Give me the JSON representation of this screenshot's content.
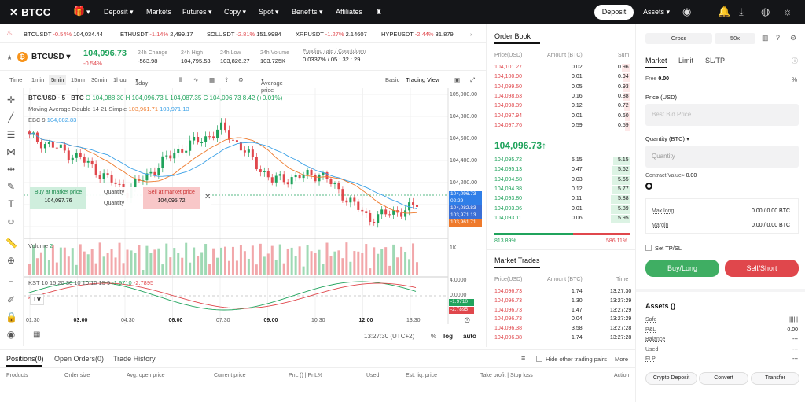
{
  "nav": {
    "logo": "BTCC",
    "items": [
      "Deposit",
      "Markets",
      "Futures",
      "Copy",
      "Spot",
      "Benefits",
      "Affiliates"
    ],
    "deposit_button": "Deposit",
    "assets": "Assets"
  },
  "ticker": [
    {
      "sym": "BTCUSDT",
      "chg": "-0.54%",
      "price": "104,034.44"
    },
    {
      "sym": "ETHUSDT",
      "chg": "-1.14%",
      "price": "2,499.17"
    },
    {
      "sym": "SOLUSDT",
      "chg": "-2.81%",
      "price": "151.9984"
    },
    {
      "sym": "XRPUSDT",
      "chg": "-1.27%",
      "price": "2.14607"
    },
    {
      "sym": "HYPEUSDT",
      "chg": "-2.44%",
      "price": "31.879"
    }
  ],
  "symbol": {
    "name": "BTCUSD",
    "price": "104,096.73",
    "change": "-0.54%",
    "stats": [
      {
        "label": "24h Change",
        "value": "-563.98"
      },
      {
        "label": "24h High",
        "value": "104,795.53"
      },
      {
        "label": "24h Low",
        "value": "103,826.27"
      },
      {
        "label": "24h Volume",
        "value": "103.725K"
      },
      {
        "label": "Funding rate / Countdown",
        "value": "0.0337% / 05 : 32 : 29"
      }
    ]
  },
  "toolbar": {
    "items": [
      "Time",
      "1min",
      "5min",
      "15min",
      "30min",
      "1hour",
      "1day"
    ],
    "active": "5min",
    "avg": "Average price",
    "basic": "Basic",
    "tv": "Trading View"
  },
  "chart": {
    "header": "BTC/USD · 5 · BTC",
    "ohlc": "O 104,088.30  H 104,096.73  L 104,087.35  C 104,096.73  8.42 (+0.01%)",
    "ma_label": "Moving Average Double 14 21 Simple",
    "ma1": "103,961.71",
    "ma2": "103,971.13",
    "ebc_label": "EBC 9",
    "ebc_val": "104,082.83",
    "buy_label": "Buy at market price",
    "buy_val": "104,097.76",
    "qty": "Quantity",
    "sell_label": "Sell at market price",
    "sell_val": "104,095.72",
    "volume_label": "Volume",
    "volume_val": "2",
    "vol_1k": "1K",
    "kst_label": "KST 10 15 20 30 10 10 10 15 9",
    "kst_v1": "-1.9710",
    "kst_v2": "-2.7895",
    "y_ticks": [
      "105,000.00",
      "104,800.00",
      "104,600.00",
      "104,400.00",
      "104,200.00"
    ],
    "price_tags": [
      {
        "text": "104,096.73",
        "color": "#2f7ee8"
      },
      {
        "text": "02:29",
        "color": "#2f7ee8"
      },
      {
        "text": "104,082.83",
        "color": "#3b6fd6"
      },
      {
        "text": "103,971.13",
        "color": "#3b6fd6"
      },
      {
        "text": "103,961.71",
        "color": "#ee7a2c"
      }
    ],
    "kst_ticks": [
      "4.0000",
      "0.0000"
    ],
    "kst_tags": [
      {
        "text": "-1.9710",
        "color": "#20a35c"
      },
      {
        "text": "-2.7895",
        "color": "#e0474c"
      }
    ],
    "x_ticks": [
      "01:30",
      "03:00",
      "04:30",
      "06:00",
      "07:30",
      "09:00",
      "10:30",
      "12:00",
      "13:30"
    ],
    "clock": "13:27:30 (UTC+2)",
    "pct": "%",
    "log": "log",
    "auto": "auto"
  },
  "chart_data": {
    "type": "line",
    "title": "BTC/USD · 5 · BTC",
    "xlabel": "time",
    "ylabel": "price",
    "x": [
      "01:30",
      "03:00",
      "04:30",
      "06:00",
      "07:30",
      "09:00",
      "10:30",
      "12:00",
      "13:30"
    ],
    "series": [
      {
        "name": "close",
        "values": [
          104690,
          104520,
          104220,
          104560,
          104760,
          104320,
          104380,
          104000,
          104097
        ]
      }
    ],
    "ylim": [
      103850,
      105050
    ]
  },
  "orderbook": {
    "title": "Order Book",
    "h_price": "Price(USD)",
    "h_amount": "Amount (BTC)",
    "h_sum": "Sum",
    "asks": [
      [
        "104,101.27",
        "0.02",
        "0.96"
      ],
      [
        "104,100.90",
        "0.01",
        "0.94"
      ],
      [
        "104,099.50",
        "0.05",
        "0.93"
      ],
      [
        "104,098.63",
        "0.16",
        "0.88"
      ],
      [
        "104,098.39",
        "0.12",
        "0.72"
      ],
      [
        "104,097.94",
        "0.01",
        "0.60"
      ],
      [
        "104,097.76",
        "0.59",
        "0.59"
      ]
    ],
    "mid": "104,096.73↑",
    "bids": [
      [
        "104,095.72",
        "5.15",
        "5.15"
      ],
      [
        "104,095.13",
        "0.47",
        "5.62"
      ],
      [
        "104,094.58",
        "0.03",
        "5.65"
      ],
      [
        "104,094.38",
        "0.12",
        "5.77"
      ],
      [
        "104,093.80",
        "0.11",
        "5.88"
      ],
      [
        "104,093.36",
        "0.01",
        "5.89"
      ],
      [
        "104,093.11",
        "0.06",
        "5.95"
      ]
    ],
    "buy_pct": "813.89%",
    "sell_pct": "586.11%",
    "buy_ratio": 0.58
  },
  "trades": {
    "title": "Market Trades",
    "h_price": "Price(USD)",
    "h_amount": "Amount (BTC)",
    "h_time": "Time",
    "rows": [
      [
        "104,096.73",
        "1.74",
        "13:27:30"
      ],
      [
        "104,096.73",
        "1.30",
        "13:27:29"
      ],
      [
        "104,096.73",
        "1.47",
        "13:27:29"
      ],
      [
        "104,096.73",
        "0.04",
        "13:27:29"
      ],
      [
        "104,096.38",
        "3.58",
        "13:27:28"
      ],
      [
        "104,096.38",
        "1.74",
        "13:27:28"
      ]
    ]
  },
  "positions": {
    "tabs": [
      "Positions(0)",
      "Open Orders(0)",
      "Trade History"
    ],
    "hide_label": "Hide other trading pairs",
    "more": "More",
    "cols": [
      "Products",
      "Order size",
      "Avg. open price",
      "Current price",
      "PnL () | PnL%",
      "Used",
      "Est. liq. price",
      "Take profit | Stop loss",
      "Action"
    ]
  },
  "trade": {
    "cross": "Cross",
    "leverage": "50x",
    "tabs": [
      "Market",
      "Limit",
      "SL/TP"
    ],
    "free_label": "Free",
    "free_val": "0.00",
    "price_label": "Price (USD)",
    "price_ph": "Best Bid Price",
    "qty_label": "Quantity (BTC)",
    "qty_ph": "Quantity",
    "cv_label": "Contract Value≈",
    "cv_val": "0.00",
    "maxlong_label": "Max long",
    "maxlong_val": "0.00 / 0.00 BTC",
    "margin_label": "Margin",
    "margin_val": "0.00 / 0.00 BTC",
    "tpsl": "Set TP/SL",
    "buy": "Buy/Long",
    "sell": "Sell/Short"
  },
  "assets": {
    "title": "Assets ()",
    "rows": [
      {
        "label": "Safe",
        "val": "||||||"
      },
      {
        "label": "P&L",
        "val": "0.00"
      },
      {
        "label": "Balance",
        "val": "---"
      },
      {
        "label": "Used",
        "val": "---"
      },
      {
        "label": "FLP",
        "val": "---"
      }
    ],
    "buttons": [
      "Crypto Deposit",
      "Convert",
      "Transfer"
    ]
  }
}
